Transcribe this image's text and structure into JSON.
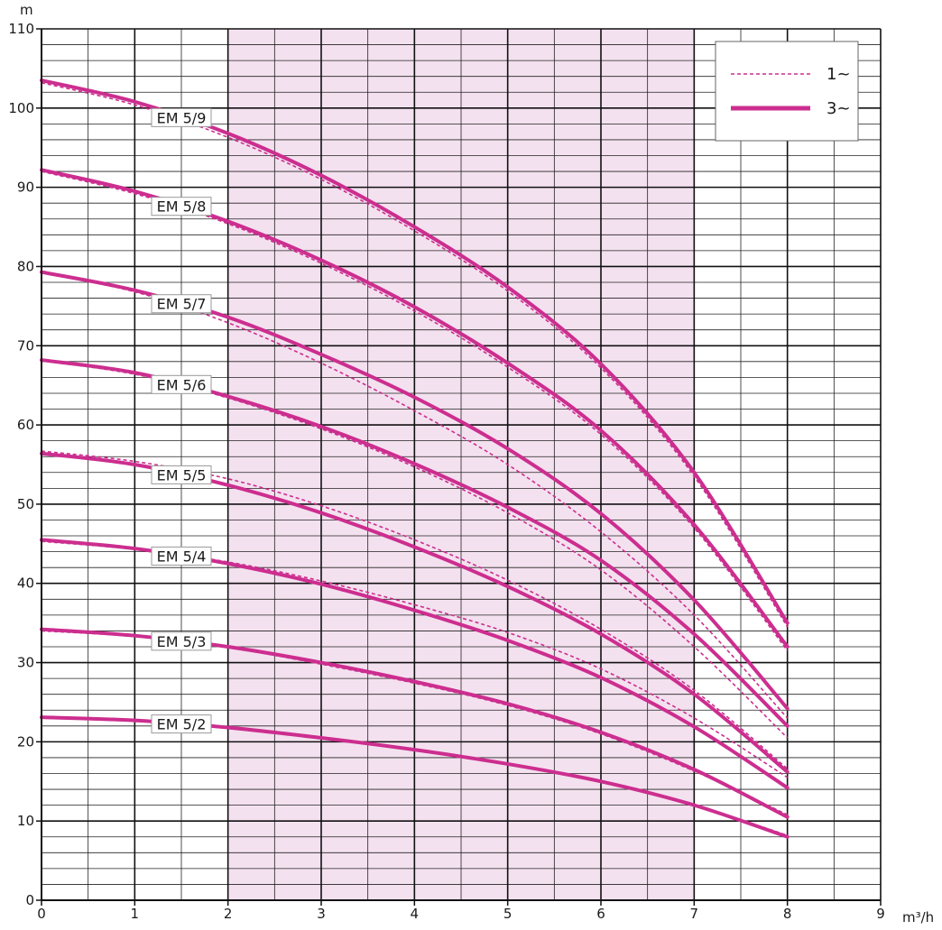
{
  "chart_data": {
    "type": "line",
    "title": "",
    "xlabel": "m³/h",
    "ylabel": "m",
    "xlim": [
      0,
      9
    ],
    "ylim": [
      0,
      110
    ],
    "x_ticks": [
      "0",
      "1",
      "2",
      "3",
      "4",
      "5",
      "6",
      "7",
      "8",
      "9"
    ],
    "y_ticks": [
      "0",
      "10",
      "20",
      "30",
      "40",
      "50",
      "60",
      "70",
      "80",
      "90",
      "100",
      "110"
    ],
    "grid": "on",
    "highlight_range": [
      2,
      7
    ],
    "highlight_color": "#f4e1ef",
    "curve_color": "#cc2e8f",
    "legend": {
      "placement": "top-right",
      "entries": [
        {
          "label": "1~",
          "style": "dashed"
        },
        {
          "label": "3~",
          "style": "solid"
        }
      ]
    },
    "x": [
      0,
      1,
      2,
      3,
      4,
      5,
      6,
      7,
      8
    ],
    "curve_labels": [
      "EM 5/2",
      "EM 5/3",
      "EM 5/4",
      "EM 5/5",
      "EM 5/6",
      "EM 5/7",
      "EM 5/8",
      "EM 5/9"
    ],
    "series": [
      {
        "model": "EM 5/2",
        "phase": "3~",
        "values": [
          23.1,
          22.7,
          21.8,
          20.5,
          19.0,
          17.2,
          15.0,
          12.0,
          8.0
        ]
      },
      {
        "model": "EM 5/2",
        "phase": "1~",
        "values": [
          23.0,
          22.6,
          21.7,
          20.4,
          18.9,
          17.1,
          15.0,
          12.0,
          8.2
        ]
      },
      {
        "model": "EM 5/3",
        "phase": "3~",
        "values": [
          34.2,
          33.4,
          32.0,
          30.0,
          27.6,
          24.8,
          21.2,
          16.5,
          10.5
        ]
      },
      {
        "model": "EM 5/3",
        "phase": "1~",
        "values": [
          34.0,
          33.3,
          31.9,
          29.8,
          27.4,
          24.6,
          21.0,
          16.3,
          10.8
        ]
      },
      {
        "model": "EM 5/4",
        "phase": "3~",
        "values": [
          45.5,
          44.4,
          42.5,
          39.9,
          36.6,
          32.8,
          28.1,
          21.9,
          14.2
        ]
      },
      {
        "model": "EM 5/4",
        "phase": "1~",
        "values": [
          45.3,
          44.3,
          42.7,
          40.3,
          37.3,
          33.8,
          29.2,
          23.0,
          15.5
        ]
      },
      {
        "model": "EM 5/5",
        "phase": "3~",
        "values": [
          56.4,
          55.0,
          52.4,
          48.9,
          44.6,
          39.6,
          33.6,
          26.0,
          16.2
        ]
      },
      {
        "model": "EM 5/5",
        "phase": "1~",
        "values": [
          56.7,
          55.4,
          53.2,
          49.8,
          45.5,
          40.4,
          34.2,
          26.5,
          16.6
        ]
      },
      {
        "model": "EM 5/6",
        "phase": "3~",
        "values": [
          68.2,
          66.6,
          63.6,
          59.8,
          55.1,
          49.6,
          42.9,
          33.6,
          22.0
        ]
      },
      {
        "model": "EM 5/6",
        "phase": "1~",
        "values": [
          68.1,
          66.4,
          63.4,
          59.5,
          54.7,
          48.9,
          41.7,
          32.0,
          20.5
        ]
      },
      {
        "model": "EM 5/7",
        "phase": "3~",
        "values": [
          79.3,
          77.0,
          73.6,
          68.9,
          63.5,
          57.0,
          48.8,
          37.9,
          24.2
        ]
      },
      {
        "model": "EM 5/7",
        "phase": "1~",
        "values": [
          79.2,
          76.8,
          72.9,
          67.8,
          61.8,
          55.0,
          46.5,
          36.0,
          23.0
        ]
      },
      {
        "model": "EM 5/8",
        "phase": "3~",
        "values": [
          92.2,
          89.5,
          85.7,
          80.8,
          74.9,
          67.8,
          59.3,
          47.4,
          32.0
        ]
      },
      {
        "model": "EM 5/8",
        "phase": "1~",
        "values": [
          92.0,
          89.2,
          85.4,
          80.4,
          74.4,
          67.3,
          58.8,
          47.0,
          31.5
        ]
      },
      {
        "model": "EM 5/9",
        "phase": "3~",
        "values": [
          103.5,
          100.8,
          96.8,
          91.5,
          85.0,
          77.4,
          67.7,
          54.0,
          35.0
        ]
      },
      {
        "model": "EM 5/9",
        "phase": "1~",
        "values": [
          103.2,
          100.4,
          96.3,
          91.0,
          84.5,
          76.9,
          67.2,
          53.5,
          34.5
        ]
      }
    ]
  }
}
